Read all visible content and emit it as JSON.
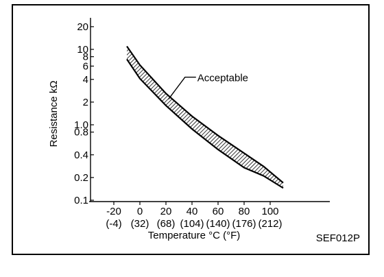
{
  "chart_data": {
    "type": "line",
    "title": "",
    "ylabel": "Resistance  kΩ",
    "xlabel": "Temperature °C (°F)",
    "y_scale": "log",
    "ylim": [
      0.1,
      20
    ],
    "xlim": [
      -30,
      110
    ],
    "y_ticks": [
      {
        "value": 0.1,
        "label": "0.1"
      },
      {
        "value": 0.2,
        "label": "0.2"
      },
      {
        "value": 0.4,
        "label": "0.4"
      },
      {
        "value": 0.8,
        "label": "0.8"
      },
      {
        "value": 1.0,
        "label": "1.0"
      },
      {
        "value": 2,
        "label": "2"
      },
      {
        "value": 4,
        "label": "4"
      },
      {
        "value": 6,
        "label": "6"
      },
      {
        "value": 8,
        "label": "8"
      },
      {
        "value": 10,
        "label": "10"
      },
      {
        "value": 20,
        "label": "20"
      }
    ],
    "x_ticks": [
      {
        "value": -20,
        "label": "-20",
        "sublabel": "(-4)"
      },
      {
        "value": 0,
        "label": "0",
        "sublabel": "(32)"
      },
      {
        "value": 20,
        "label": "20",
        "sublabel": "(68)"
      },
      {
        "value": 40,
        "label": "40",
        "sublabel": "(104)"
      },
      {
        "value": 60,
        "label": "60",
        "sublabel": "(140)"
      },
      {
        "value": 80,
        "label": "80",
        "sublabel": "(176)"
      },
      {
        "value": 100,
        "label": "100",
        "sublabel": "(212)"
      }
    ],
    "band": {
      "upper": {
        "x": [
          -10,
          0,
          20,
          40,
          60,
          80,
          95,
          110
        ],
        "y": [
          11.0,
          6.2,
          2.6,
          1.3,
          0.72,
          0.42,
          0.28,
          0.17
        ]
      },
      "lower": {
        "x": [
          -10,
          0,
          20,
          40,
          60,
          80,
          95,
          110
        ],
        "y": [
          7.4,
          4.1,
          1.8,
          0.88,
          0.47,
          0.27,
          0.21,
          0.145
        ]
      }
    },
    "annotation": {
      "text": "Acceptable",
      "target_x": 22,
      "target_y": 2.1
    }
  },
  "figure_code": "SEF012P"
}
